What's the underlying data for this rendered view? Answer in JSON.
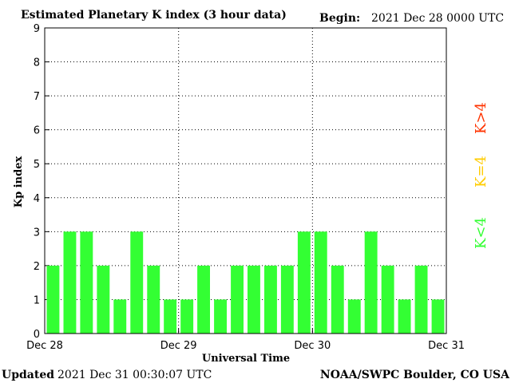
{
  "header": {
    "title": "Estimated Planetary K index (3 hour data)",
    "begin_label": "Begin:",
    "begin_value": "2021 Dec 28 0000 UTC"
  },
  "footer": {
    "updated_label": "Updated",
    "updated_value": "2021 Dec 31 00:30:07 UTC",
    "source": "NOAA/SWPC Boulder, CO USA"
  },
  "legend": {
    "high": {
      "label": "K>4",
      "color": "#ff3300"
    },
    "mid": {
      "label": "K=4",
      "color": "#ffcc00"
    },
    "low": {
      "label": "K<4",
      "color": "#33ff33"
    }
  },
  "chart_data": {
    "type": "bar",
    "title": "Estimated Planetary K index (3 hour data)",
    "xlabel": "Universal Time",
    "ylabel": "Kp index",
    "ylim": [
      0,
      9
    ],
    "yticks": [
      0,
      1,
      2,
      3,
      4,
      5,
      6,
      7,
      8,
      9
    ],
    "day_labels": [
      "Dec 28",
      "Dec 29",
      "Dec 30",
      "Dec 31"
    ],
    "bars_per_day": 8,
    "values": [
      2,
      3,
      3,
      2,
      1,
      3,
      2,
      1,
      1,
      2,
      1,
      2,
      2,
      2,
      2,
      3,
      3,
      2,
      1,
      3,
      2,
      1,
      2,
      1
    ],
    "bar_color": "#33ff33",
    "grid": true
  }
}
